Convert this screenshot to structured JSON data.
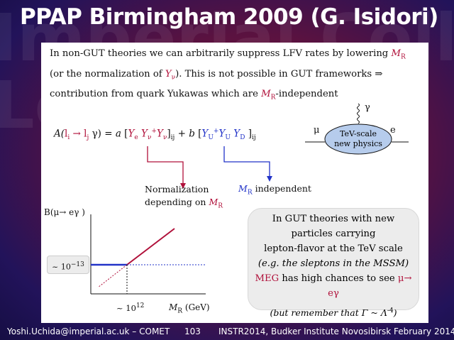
{
  "background": {
    "words": [
      "Imperial Colleg",
      "London"
    ]
  },
  "title": "PPAP Birmingham 2009 (G. Isidori)",
  "intro": {
    "part1": "In non-GUT theories we can arbitrarily suppress LFV rates by lowering ",
    "mr": "M",
    "mr_sub": "R",
    "part2": " (or the normalization of ",
    "ynu": "Y",
    "ynu_sub": "ν",
    "part3": "). This is not possible in GUT frameworks ⇒ contribution from quark Yukawas which are ",
    "part4": "-independent"
  },
  "formula": {
    "lhs_a": "A(",
    "li": "l",
    "li_sub": "i",
    "arrow": " → ",
    "lj": "l",
    "lj_sub": "j",
    "gamma": " γ) = ",
    "a": "a",
    "open1": " [",
    "ye": "Y",
    "ye_sub": "e",
    "ynu": " Y",
    "ynu_sub": "ν",
    "ynu_sup": "+",
    "ynu2": "Y",
    "ynu2_sub": "ν",
    "close1": "]",
    "ij1": "ij",
    "plus_b": " + b  ",
    "open2": "[",
    "yu": "Y",
    "yu_sub": "U",
    "yu_sup": "+",
    "yu2": "Y",
    "yu2_sub": "U",
    "yd": " Y",
    "yd_sub": "D",
    "close2": " ]",
    "ij2": "ij"
  },
  "normalization_label": {
    "line1": "Normalization",
    "line2": "depending on ",
    "mr": "M",
    "mr_sub": "R"
  },
  "independent_label": {
    "mr": "M",
    "mr_sub": "R",
    "text": " independent"
  },
  "diagram": {
    "mu": "μ",
    "e": "e",
    "gamma": "γ",
    "ellipse_line1": "TeV-scale",
    "ellipse_line2": "new physics"
  },
  "plot": {
    "ylabel": "B(μ→ eγ )",
    "yvalue": "~ 10",
    "yvalue_exp": "−13",
    "xvalue": "~ 10",
    "xvalue_exp": "12",
    "xlabel_m": "M",
    "xlabel_sub": "R",
    "xlabel_unit": "  (GeV)"
  },
  "callout": {
    "line1": "In GUT theories with new",
    "line2": "particles carrying",
    "line3": "lepton-flavor at the TeV scale",
    "line4": "(e.g. the sleptons in the MSSM)",
    "line5a": "MEG",
    "line5b": " has high chances to see ",
    "line5c": "μ→ eγ",
    "line6": "(but remember that  Γ ~ Λ",
    "line6_exp": "-4",
    "line6_end": ")"
  },
  "footer": {
    "email": "Yoshi.Uchida@imperial.ac.uk – COMET",
    "page": "103",
    "event": "INSTR2014, Budker Institute Novosibirsk February 2014"
  },
  "colors": {
    "red": "#b0103a",
    "blue": "#2233c8",
    "orange": "#dd7a00"
  }
}
